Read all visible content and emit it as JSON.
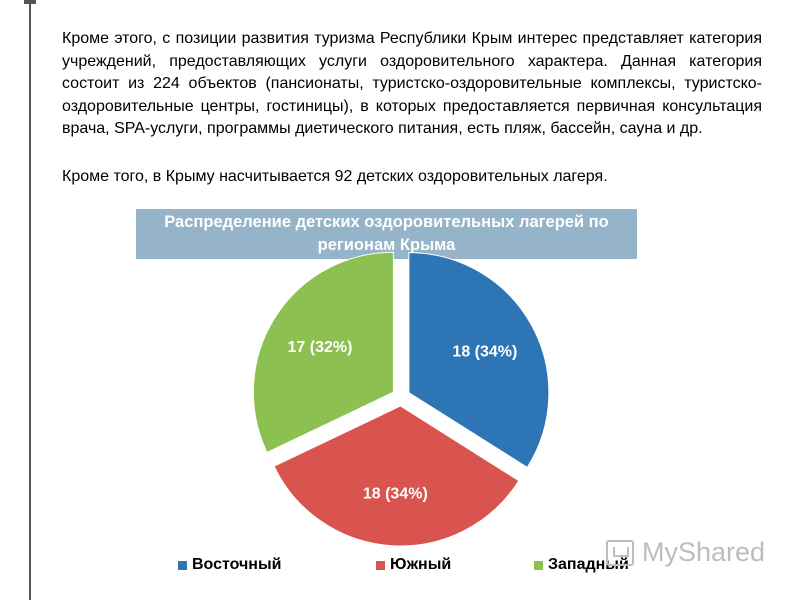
{
  "paragraphs": {
    "p1": "Кроме этого, с позиции развития туризма Республики Крым интерес представляет категория учреждений, предоставляющих услуги оздоровительного характера. Данная категория состоит из 224 объектов (пансионаты, туристско-оздоровительные комплексы, туристско-оздоровительные центры, гостиницы), в которых предоставляется первичная консультация врача, SPA-услуги, программы диетического питания, есть пляж, бассейн, сауна и др.",
    "p2": "Кроме того, в Крыму насчитывается 92 детских оздоровительных лагеря."
  },
  "chart_data": {
    "type": "pie",
    "title": "Распределение детских оздоровительных лагерей по регионам Крыма",
    "slices": [
      {
        "name": "Восточный",
        "value": 18,
        "label": "18 (34%)",
        "color": "#2e75b6"
      },
      {
        "name": "Южный",
        "value": 18,
        "label": "18 (34%)",
        "color": "#d9534f"
      },
      {
        "name": "Западный",
        "value": 17,
        "label": "17 (32%)",
        "color": "#8cc152"
      }
    ],
    "legend_position": "bottom",
    "exploded": true
  },
  "watermark": {
    "text": "MyShared",
    "icon": "presentation-icon"
  },
  "colors": {
    "title_box": "#95b3c9",
    "accent_bar": "#555555"
  }
}
